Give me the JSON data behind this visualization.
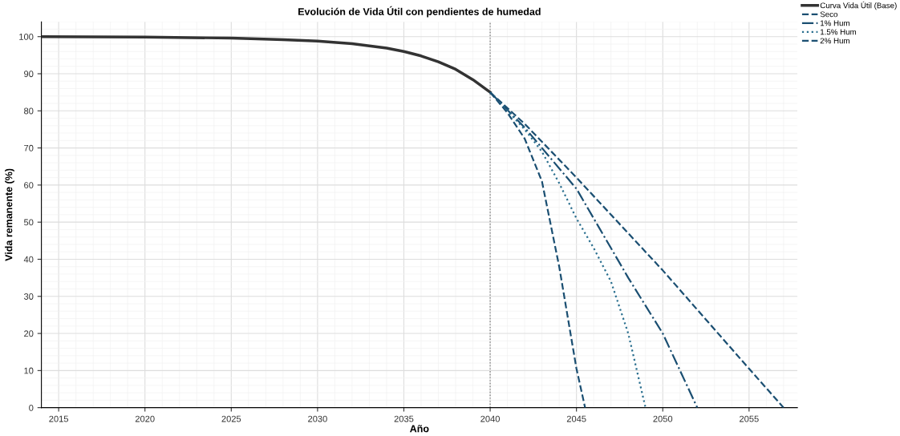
{
  "chart_data": {
    "type": "line",
    "title": "Evolución de Vida Útil con pendientes de humedad",
    "xlabel": "Año",
    "ylabel": "Vida remanente (%)",
    "series": [
      {
        "name": "Curva Vida Útil (Base)",
        "color": "#333333",
        "line_style": "solid",
        "x": [
          2014,
          2020,
          2025,
          2028,
          2030,
          2032,
          2034,
          2035,
          2036,
          2037,
          2038,
          2039,
          2040
        ],
        "values": [
          100,
          99.9,
          99.6,
          99.2,
          98.8,
          98.1,
          96.9,
          96,
          94.8,
          93.2,
          91.2,
          88.4,
          85
        ]
      },
      {
        "name": "Seco",
        "color": "#1b4f72",
        "line_style": "dashed",
        "x": [
          2040,
          2042,
          2045,
          2050,
          2055,
          2057
        ],
        "values": [
          85,
          76.5,
          62,
          37,
          10.5,
          0
        ]
      },
      {
        "name": "1% Hum",
        "color": "#1b4f72",
        "line_style": "dashdot",
        "x": [
          2040,
          2042,
          2045,
          2048,
          2050,
          2052
        ],
        "values": [
          85,
          75.5,
          59,
          35,
          20,
          0
        ]
      },
      {
        "name": "1.5% Hum",
        "color": "#2a6f8f",
        "line_style": "dotted",
        "x": [
          2040,
          2042,
          2043,
          2044,
          2045,
          2046,
          2047,
          2048,
          2049
        ],
        "values": [
          85,
          75,
          69,
          60.5,
          51,
          43,
          34,
          20,
          0
        ]
      },
      {
        "name": "2% Hum",
        "color": "#1b4f72",
        "line_style": "dashed",
        "x": [
          2040,
          2041,
          2042,
          2043,
          2044,
          2045,
          2045.5
        ],
        "values": [
          85,
          79.5,
          72.5,
          61,
          38,
          10.5,
          0
        ]
      }
    ],
    "ref_lines": [
      {
        "axis": "x",
        "value": 2040,
        "label": null,
        "color": "#888888",
        "line_style": "dotted"
      }
    ],
    "xlim": [
      2014,
      2057.8
    ],
    "xticks": [
      2015,
      2020,
      2025,
      2030,
      2035,
      2040,
      2045,
      2050,
      2055
    ],
    "ylim": [
      0,
      104
    ],
    "yticks": [
      0,
      10,
      20,
      30,
      40,
      50,
      60,
      70,
      80,
      90,
      100
    ],
    "grid": true,
    "legend": "top right"
  }
}
